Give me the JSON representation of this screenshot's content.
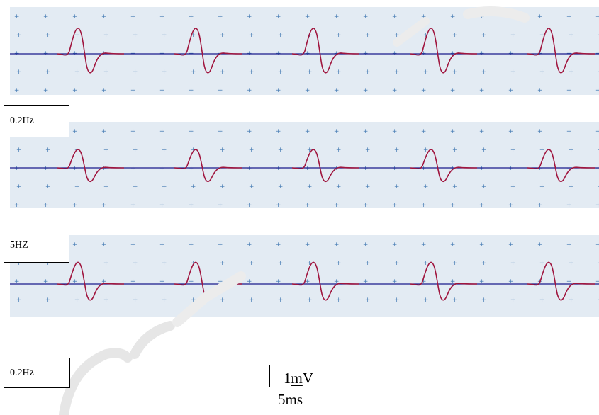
{
  "traces": [
    {
      "label": "0.2Hz",
      "beats": 5
    },
    {
      "label": "5HZ",
      "beats": 5
    },
    {
      "label": "0.2Hz",
      "beats": 5
    }
  ],
  "scale_bar": {
    "amplitude_num": "1",
    "amplitude_under": "m",
    "amplitude_unit": "V",
    "time": "5ms"
  },
  "colors": {
    "background": "#e3ebf3",
    "baseline": "#1a1a8c",
    "complex": "#a0153e",
    "grid_marks": "#4a7fb5",
    "watermark": "#e8e8e8"
  }
}
